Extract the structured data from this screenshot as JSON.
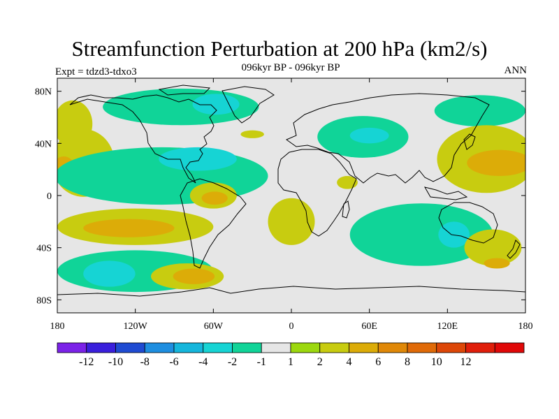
{
  "title": "Streamfunction Perturbation at 200 hPa (km2/s)",
  "subtitle": "096kyr BP - 096kyr BP",
  "left_label": "Expt = tdzd3-tdxo3",
  "right_label": "ANN",
  "map": {
    "projection": "cylindrical equidistant",
    "lon_range": [
      -180,
      180
    ],
    "lat_range": [
      -90,
      90
    ],
    "lat_ticks": [
      {
        "value": 80,
        "label": "80N"
      },
      {
        "value": 40,
        "label": "40N"
      },
      {
        "value": 0,
        "label": "0"
      },
      {
        "value": -40,
        "label": "40S"
      },
      {
        "value": -80,
        "label": "80S"
      }
    ],
    "lon_ticks": [
      {
        "value": -180,
        "label": "180"
      },
      {
        "value": -120,
        "label": "120W"
      },
      {
        "value": -60,
        "label": "60W"
      },
      {
        "value": 0,
        "label": "0"
      },
      {
        "value": 60,
        "label": "60E"
      },
      {
        "value": 120,
        "label": "120E"
      },
      {
        "value": 180,
        "label": "180"
      }
    ]
  },
  "colorbar": {
    "colors": [
      "#7b22e8",
      "#3a1fdc",
      "#1f4bd2",
      "#1e8ee0",
      "#15b6dc",
      "#16d4d4",
      "#10d498",
      "#e6e6e6",
      "#9cd80e",
      "#c8cc10",
      "#dcac08",
      "#e08808",
      "#e06a08",
      "#dd4708",
      "#e01e0a",
      "#e00808"
    ],
    "labels": [
      "-12",
      "-10",
      "-8",
      "-6",
      "-4",
      "-2",
      "-1",
      "1",
      "2",
      "4",
      "6",
      "8",
      "10",
      "12"
    ]
  },
  "chart_data": {
    "type": "heatmap",
    "variable": "streamfunction perturbation at 200 hPa",
    "units": "km2/s",
    "levels": [
      -12,
      -10,
      -8,
      -6,
      -4,
      -2,
      -1,
      1,
      2,
      4,
      6,
      8,
      10,
      12
    ],
    "background_level_range": [
      -1,
      1
    ],
    "regions": [
      {
        "name": "arctic-canada-negative",
        "lon": -85,
        "lat": 68,
        "rx": 60,
        "ry": 14,
        "value": -2
      },
      {
        "name": "canada-core-negative",
        "lon": -58,
        "lat": 70,
        "rx": 18,
        "ry": 8,
        "value": -4
      },
      {
        "name": "alaska-pacific-positive",
        "lon": -168,
        "lat": 55,
        "rx": 15,
        "ry": 18,
        "value": 2
      },
      {
        "name": "north-pacific-positive",
        "lon": -160,
        "lat": 25,
        "rx": 24,
        "ry": 26,
        "value": 2
      },
      {
        "name": "north-pacific-core",
        "lon": -175,
        "lat": 22,
        "rx": 8,
        "ry": 8,
        "value": 4
      },
      {
        "name": "nh-tropical-negative-band",
        "lon": -100,
        "lat": 15,
        "rx": 82,
        "ry": 22,
        "value": -2
      },
      {
        "name": "caribbean-core-negative",
        "lon": -72,
        "lat": 28,
        "rx": 30,
        "ry": 9,
        "value": -4
      },
      {
        "name": "south-america-positive",
        "lon": -60,
        "lat": 0,
        "rx": 18,
        "ry": 10,
        "value": 2
      },
      {
        "name": "south-america-core",
        "lon": -59,
        "lat": -2,
        "rx": 10,
        "ry": 5,
        "value": 4
      },
      {
        "name": "south-pacific-positive",
        "lon": -120,
        "lat": -24,
        "rx": 60,
        "ry": 14,
        "value": 2
      },
      {
        "name": "south-pacific-core",
        "lon": -125,
        "lat": -25,
        "rx": 35,
        "ry": 7,
        "value": 4
      },
      {
        "name": "south-pacific-negative",
        "lon": -120,
        "lat": -58,
        "rx": 60,
        "ry": 16,
        "value": -2
      },
      {
        "name": "south-pacific-negative-core",
        "lon": -140,
        "lat": -60,
        "rx": 20,
        "ry": 10,
        "value": -4
      },
      {
        "name": "drake-passage-positive",
        "lon": -80,
        "lat": -62,
        "rx": 28,
        "ry": 10,
        "value": 2
      },
      {
        "name": "drake-passage-core",
        "lon": -75,
        "lat": -62,
        "rx": 16,
        "ry": 6,
        "value": 4
      },
      {
        "name": "north-atlantic-positive",
        "lon": -30,
        "lat": 47,
        "rx": 9,
        "ry": 3,
        "value": 2
      },
      {
        "name": "middle-east-negative",
        "lon": 55,
        "lat": 45,
        "rx": 35,
        "ry": 16,
        "value": -2
      },
      {
        "name": "central-asia-core",
        "lon": 60,
        "lat": 46,
        "rx": 15,
        "ry": 6,
        "value": -4
      },
      {
        "name": "arabian-sea-positive",
        "lon": 43,
        "lat": 10,
        "rx": 8,
        "ry": 5,
        "value": 2
      },
      {
        "name": "atlantic-tropical-positive",
        "lon": 0,
        "lat": -20,
        "rx": 18,
        "ry": 18,
        "value": 2
      },
      {
        "name": "siberia-negative",
        "lon": 145,
        "lat": 65,
        "rx": 35,
        "ry": 12,
        "value": -2
      },
      {
        "name": "west-pacific-positive",
        "lon": 150,
        "lat": 28,
        "rx": 38,
        "ry": 26,
        "value": 2
      },
      {
        "name": "west-pacific-core",
        "lon": 160,
        "lat": 25,
        "rx": 25,
        "ry": 10,
        "value": 4
      },
      {
        "name": "indian-ocean-negative",
        "lon": 100,
        "lat": -30,
        "rx": 55,
        "ry": 24,
        "value": -2
      },
      {
        "name": "australia-negative-core",
        "lon": 125,
        "lat": -30,
        "rx": 12,
        "ry": 10,
        "value": -4
      },
      {
        "name": "tasman-positive",
        "lon": 155,
        "lat": -40,
        "rx": 22,
        "ry": 14,
        "value": 2
      },
      {
        "name": "tasman-core",
        "lon": 158,
        "lat": -52,
        "rx": 10,
        "ry": 4,
        "value": 4
      }
    ]
  }
}
